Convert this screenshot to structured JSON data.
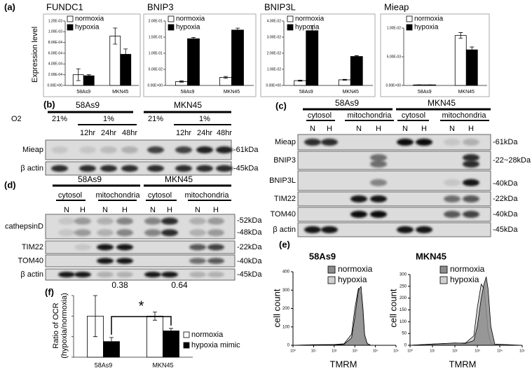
{
  "chart_data": [
    {
      "type": "bar",
      "panel_label": "(a)",
      "title": "FUNDC1",
      "ylabel": "Expression level",
      "categories": [
        "58As9",
        "MKN45"
      ],
      "series": [
        {
          "name": "normoxia",
          "color": "#ffffff",
          "values": [
            0.0002,
            0.00092
          ],
          "errors": [
            0.00011,
            0.00015
          ]
        },
        {
          "name": "hypoxia",
          "color": "#000000",
          "values": [
            0.00018,
            0.00058
          ],
          "errors": [
            2e-05,
            0.0001
          ]
        }
      ],
      "ylim": [
        0,
        0.0012
      ],
      "yticks": [
        {
          "value": 0,
          "label": "0.00E+00"
        },
        {
          "value": 0.0002,
          "label": "2.00E-04"
        },
        {
          "value": 0.0004,
          "label": "4.00E-04"
        },
        {
          "value": 0.0006,
          "label": "6.00E-04"
        },
        {
          "value": 0.0008,
          "label": "8.00E-04"
        },
        {
          "value": 0.001,
          "label": "1.00E-03"
        },
        {
          "value": 0.0012,
          "label": "1.20E-03"
        }
      ]
    },
    {
      "type": "bar",
      "title": "BNIP3",
      "categories": [
        "58As9",
        "MKN45"
      ],
      "series": [
        {
          "name": "normoxia",
          "color": "#ffffff",
          "values": [
            0.012,
            0.025
          ],
          "errors": [
            0.002,
            0.003
          ]
        },
        {
          "name": "hypoxia",
          "color": "#000000",
          "values": [
            0.145,
            0.172
          ],
          "errors": [
            0.004,
            0.006
          ]
        }
      ],
      "ylim": [
        0,
        0.2
      ],
      "yticks": [
        {
          "value": 0,
          "label": "0.00E+00"
        },
        {
          "value": 0.05,
          "label": "5.00E-02"
        },
        {
          "value": 0.1,
          "label": "1.00E-01"
        },
        {
          "value": 0.15,
          "label": "1.50E-01"
        },
        {
          "value": 0.2,
          "label": "2.00E-01"
        }
      ]
    },
    {
      "type": "bar",
      "title": "BNIP3L",
      "categories": [
        "58As9",
        "MKN45"
      ],
      "series": [
        {
          "name": "normoxia",
          "color": "#ffffff",
          "values": [
            0.003,
            0.0035
          ],
          "errors": [
            0.0003,
            0.0003
          ]
        },
        {
          "name": "hypoxia",
          "color": "#000000",
          "values": [
            0.034,
            0.018
          ],
          "errors": [
            0.003,
            0.0005
          ]
        }
      ],
      "ylim": [
        0,
        0.04
      ],
      "yticks": [
        {
          "value": 0,
          "label": "0.00E+00"
        },
        {
          "value": 0.01,
          "label": "1.00E-02"
        },
        {
          "value": 0.02,
          "label": "2.00E-02"
        },
        {
          "value": 0.03,
          "label": "3.00E-02"
        },
        {
          "value": 0.04,
          "label": "4.00E-02"
        }
      ]
    },
    {
      "type": "bar",
      "title": "Mieap",
      "categories": [
        "58As9",
        "MKN45"
      ],
      "series": [
        {
          "name": "normoxia",
          "color": "#ffffff",
          "values": [
            0.0001,
            0.0087
          ],
          "errors": [
            2e-05,
            0.0005
          ]
        },
        {
          "name": "hypoxia",
          "color": "#000000",
          "values": [
            0.0001,
            0.0062
          ],
          "errors": [
            1e-05,
            0.0005
          ]
        }
      ],
      "ylim": [
        0,
        0.01
      ],
      "yticks": [
        {
          "value": 0,
          "label": "0.00E+00"
        },
        {
          "value": 0.005,
          "label": "5.00E-03"
        },
        {
          "value": 0.01,
          "label": "1.00E-02"
        }
      ]
    },
    {
      "type": "bar",
      "panel_label": "(f)",
      "ylabel": [
        "Ratio of OCR",
        "(hypoxia/normoxia)"
      ],
      "categories": [
        "58As9",
        "MKN45"
      ],
      "series": [
        {
          "name": "normoxia",
          "color": "#ffffff",
          "values": [
            1.0,
            1.0
          ],
          "errors": [
            0.5,
            0.1
          ]
        },
        {
          "name": "hypoxia mimic",
          "color": "#000000",
          "values": [
            0.38,
            0.64
          ],
          "errors": [
            0.1,
            0.06
          ]
        }
      ],
      "ylim": [
        0,
        1.5
      ],
      "yticks": [
        0,
        0.5,
        1,
        1.5
      ],
      "annotation": "*"
    },
    {
      "type": "area",
      "panel_label": "(e)",
      "title": "58As9",
      "xlabel": "TMRM",
      "ylabel": "cell count",
      "xscale": "log",
      "x": [
        1,
        10,
        100,
        300,
        700,
        1000,
        1500,
        2000,
        2500,
        3000,
        4000,
        6000,
        100000
      ],
      "series": [
        {
          "name": "normoxia",
          "color": "#8c8c8c",
          "values": [
            0,
            2,
            3,
            5,
            40,
            150,
            300,
            320,
            200,
            60,
            10,
            0,
            0
          ]
        },
        {
          "name": "hypoxia",
          "color": "#d0d0d0",
          "values": [
            0,
            3,
            4,
            8,
            60,
            200,
            310,
            280,
            150,
            40,
            5,
            0,
            0
          ]
        }
      ],
      "xlim": [
        1,
        100000
      ],
      "xticks": [
        {
          "value": 1,
          "label": "10⁰"
        },
        {
          "value": 10,
          "label": "10¹"
        },
        {
          "value": 100,
          "label": "10²"
        },
        {
          "value": 1000,
          "label": "10³"
        },
        {
          "value": 10000,
          "label": "10⁴"
        },
        {
          "value": 100000,
          "label": "10⁵"
        }
      ],
      "ylim": [
        0,
        400
      ],
      "yticks": [
        0,
        100,
        200,
        300,
        400
      ]
    },
    {
      "type": "area",
      "title": "MKN45",
      "xlabel": "TMRM",
      "ylabel": "cell count",
      "xscale": "log",
      "x": [
        1,
        10,
        100,
        300,
        700,
        1000,
        1500,
        2000,
        2500,
        3000,
        4000,
        6000,
        100000
      ],
      "series": [
        {
          "name": "normoxia",
          "color": "#8c8c8c",
          "values": [
            0,
            5,
            10,
            8,
            20,
            80,
            200,
            260,
            290,
            240,
            80,
            5,
            0
          ]
        },
        {
          "name": "hypoxia",
          "color": "#d0d0d0",
          "values": [
            0,
            5,
            8,
            10,
            40,
            160,
            260,
            240,
            150,
            60,
            10,
            0,
            0
          ]
        }
      ],
      "xlim": [
        1,
        100000
      ],
      "xticks": [
        {
          "value": 1,
          "label": "10⁰"
        },
        {
          "value": 10,
          "label": "10¹"
        },
        {
          "value": 100,
          "label": "10²"
        },
        {
          "value": 1000,
          "label": "10³"
        },
        {
          "value": 10000,
          "label": "10⁴"
        },
        {
          "value": 100000,
          "label": "10⁵"
        }
      ],
      "ylim": [
        0,
        300
      ],
      "yticks": [
        0,
        50,
        100,
        150,
        200,
        250,
        300
      ]
    }
  ],
  "blots": {
    "b": {
      "label": "(b)",
      "groups": [
        "58As9",
        "MKN45"
      ],
      "o2_label": "O2",
      "conditions": [
        [
          "21%",
          "1%"
        ],
        [
          "21%",
          "1%"
        ]
      ],
      "times": [
        [
          "12hr",
          "24hr",
          "48hr"
        ],
        [
          "12hr",
          "24hr",
          "48hr"
        ]
      ],
      "rows": [
        "Mieap",
        "β actin"
      ],
      "markers": [
        "-61kDa",
        "-45kDa"
      ]
    },
    "c": {
      "label": "(c)",
      "groups": [
        "58As9",
        "MKN45"
      ],
      "fractions": [
        "cytosol",
        "mitochondria",
        "cytosol",
        "mitochondria"
      ],
      "lanes": [
        "N",
        "H",
        "N",
        "H",
        "N",
        "H",
        "N",
        "H"
      ],
      "rows": [
        "Mieap",
        "BNIP3",
        "BNIP3L",
        "TIM22",
        "TOM40",
        "β actin"
      ],
      "markers": [
        "-61kDa",
        "-22~28kDa",
        "-40kDa",
        "-22kDa",
        "-40kDa",
        "-45kDa"
      ]
    },
    "d": {
      "label": "(d)",
      "groups": [
        "58As9",
        "MKN45"
      ],
      "fractions": [
        "cytosol",
        "mitochondria",
        "cytosol",
        "mitochondria"
      ],
      "lanes": [
        "N",
        "H",
        "N",
        "H",
        "N",
        "H",
        "N",
        "H"
      ],
      "rows": [
        "cathepsinD",
        "TIM22",
        "TOM40",
        "β actin"
      ],
      "markers": [
        "-52kDa",
        "-48kDa",
        "-22kDa",
        "-40kDa",
        "-45kDa"
      ]
    }
  }
}
